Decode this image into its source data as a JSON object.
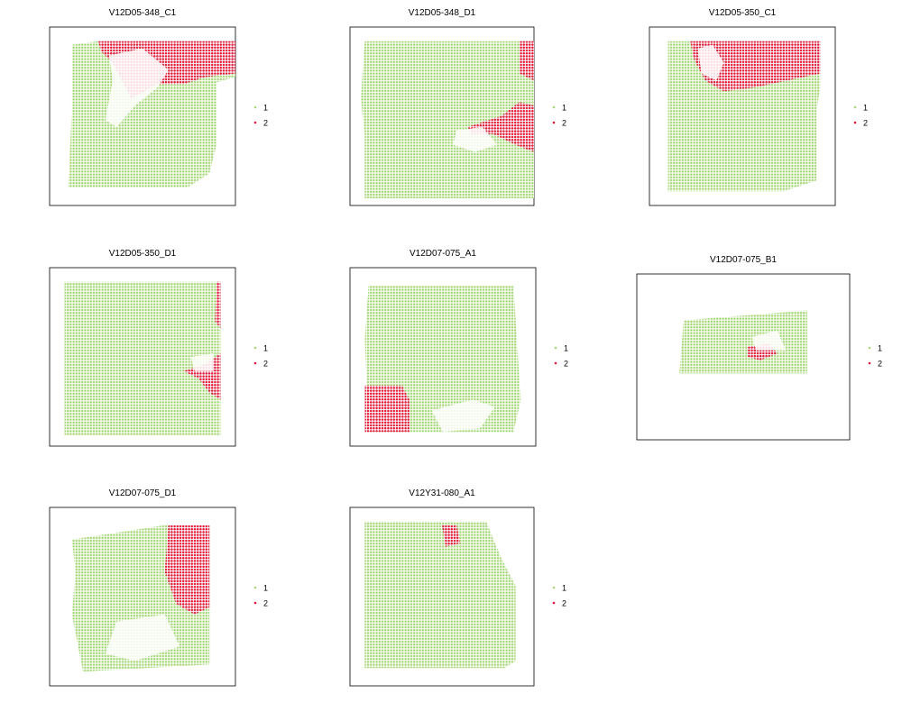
{
  "chart_data": {
    "type": "scatter",
    "description_colors": {
      "cluster_1": "#a8d87a",
      "cluster_2": "#dc1c3a"
    },
    "legend": {
      "placement": "right",
      "entries": [
        {
          "label": "1",
          "color": "#a8d87a"
        },
        {
          "label": "2",
          "color": "#dc1c3a"
        }
      ]
    },
    "panels": [
      {
        "title": "V12D05-348_C1",
        "tissue": [
          [
            0.12,
            0.1
          ],
          [
            0.26,
            0.08
          ],
          [
            1.0,
            0.08
          ],
          [
            1.0,
            0.28
          ],
          [
            0.9,
            0.31
          ],
          [
            0.9,
            0.65
          ],
          [
            0.86,
            0.82
          ],
          [
            0.74,
            0.9
          ],
          [
            0.1,
            0.9
          ],
          [
            0.12,
            0.46
          ],
          [
            0.12,
            0.25
          ]
        ],
        "clusters": [
          {
            "cluster": "2",
            "shape": [
              [
                0.26,
                0.08
              ],
              [
                1.0,
                0.08
              ],
              [
                1.0,
                0.26
              ],
              [
                0.84,
                0.28
              ],
              [
                0.72,
                0.32
              ],
              [
                0.58,
                0.32
              ],
              [
                0.44,
                0.4
              ],
              [
                0.34,
                0.2
              ],
              [
                0.28,
                0.14
              ]
            ]
          }
        ],
        "holes": [
          [
            [
              0.32,
              0.16
            ],
            [
              0.5,
              0.12
            ],
            [
              0.64,
              0.24
            ],
            [
              0.58,
              0.34
            ],
            [
              0.46,
              0.44
            ],
            [
              0.36,
              0.56
            ],
            [
              0.3,
              0.52
            ],
            [
              0.34,
              0.3
            ]
          ]
        ]
      },
      {
        "title": "V12D05-348_D1",
        "tissue": [
          [
            0.08,
            0.08
          ],
          [
            1.0,
            0.08
          ],
          [
            1.0,
            0.96
          ],
          [
            0.08,
            0.96
          ],
          [
            0.08,
            0.6
          ],
          [
            0.06,
            0.4
          ]
        ],
        "clusters": [
          {
            "cluster": "2",
            "shape": [
              [
                0.92,
                0.08
              ],
              [
                1.0,
                0.08
              ],
              [
                1.0,
                0.3
              ],
              [
                0.92,
                0.26
              ]
            ]
          },
          {
            "cluster": "2",
            "shape": [
              [
                0.64,
                0.56
              ],
              [
                0.82,
                0.5
              ],
              [
                0.92,
                0.42
              ],
              [
                1.0,
                0.44
              ],
              [
                1.0,
                0.7
              ],
              [
                0.9,
                0.66
              ],
              [
                0.78,
                0.6
              ],
              [
                0.66,
                0.6
              ]
            ]
          }
        ],
        "holes": [
          [
            [
              0.58,
              0.58
            ],
            [
              0.72,
              0.56
            ],
            [
              0.8,
              0.66
            ],
            [
              0.68,
              0.7
            ],
            [
              0.56,
              0.66
            ]
          ]
        ]
      },
      {
        "title": "V12D05-350_C1",
        "tissue": [
          [
            0.1,
            0.08
          ],
          [
            0.92,
            0.08
          ],
          [
            0.92,
            0.34
          ],
          [
            0.9,
            0.46
          ],
          [
            0.9,
            0.86
          ],
          [
            0.72,
            0.92
          ],
          [
            0.1,
            0.92
          ],
          [
            0.1,
            0.3
          ]
        ],
        "clusters": [
          {
            "cluster": "2",
            "shape": [
              [
                0.22,
                0.08
              ],
              [
                0.92,
                0.08
              ],
              [
                0.92,
                0.26
              ],
              [
                0.74,
                0.3
              ],
              [
                0.56,
                0.34
              ],
              [
                0.4,
                0.36
              ],
              [
                0.3,
                0.3
              ],
              [
                0.24,
                0.18
              ]
            ]
          }
        ],
        "holes": [
          [
            [
              0.26,
              0.12
            ],
            [
              0.34,
              0.1
            ],
            [
              0.4,
              0.2
            ],
            [
              0.36,
              0.3
            ],
            [
              0.28,
              0.26
            ]
          ]
        ]
      },
      {
        "title": "V12D05-350_D1",
        "tissue": [
          [
            0.08,
            0.08
          ],
          [
            0.92,
            0.08
          ],
          [
            0.92,
            0.94
          ],
          [
            0.08,
            0.94
          ]
        ],
        "clusters": [
          {
            "cluster": "2",
            "shape": [
              [
                0.9,
                0.08
              ],
              [
                0.92,
                0.08
              ],
              [
                0.92,
                0.34
              ],
              [
                0.89,
                0.3
              ]
            ]
          },
          {
            "cluster": "2",
            "shape": [
              [
                0.72,
                0.58
              ],
              [
                0.84,
                0.54
              ],
              [
                0.92,
                0.48
              ],
              [
                0.92,
                0.74
              ],
              [
                0.86,
                0.7
              ],
              [
                0.8,
                0.62
              ]
            ]
          }
        ],
        "holes": [
          [
            [
              0.76,
              0.5
            ],
            [
              0.88,
              0.48
            ],
            [
              0.88,
              0.58
            ],
            [
              0.78,
              0.58
            ]
          ]
        ]
      },
      {
        "title": "V12D07-075_A1",
        "tissue": [
          [
            0.1,
            0.1
          ],
          [
            0.88,
            0.1
          ],
          [
            0.9,
            0.44
          ],
          [
            0.92,
            0.74
          ],
          [
            0.88,
            0.92
          ],
          [
            0.1,
            0.92
          ],
          [
            0.08,
            0.4
          ]
        ],
        "clusters": [
          {
            "cluster": "2",
            "shape": [
              [
                0.08,
                0.66
              ],
              [
                0.28,
                0.66
              ],
              [
                0.32,
                0.74
              ],
              [
                0.32,
                0.92
              ],
              [
                0.08,
                0.92
              ]
            ]
          }
        ],
        "holes": [
          [
            [
              0.44,
              0.8
            ],
            [
              0.66,
              0.74
            ],
            [
              0.78,
              0.78
            ],
            [
              0.7,
              0.9
            ],
            [
              0.5,
              0.92
            ]
          ]
        ]
      },
      {
        "title": "V12D07-075_B1",
        "tissue": [
          [
            0.22,
            0.28
          ],
          [
            0.8,
            0.22
          ],
          [
            0.8,
            0.6
          ],
          [
            0.2,
            0.6
          ]
        ],
        "clusters": [
          {
            "cluster": "2",
            "shape": [
              [
                0.52,
                0.44
              ],
              [
                0.62,
                0.42
              ],
              [
                0.66,
                0.48
              ],
              [
                0.58,
                0.52
              ],
              [
                0.52,
                0.5
              ]
            ]
          }
        ],
        "holes": [
          [
            [
              0.54,
              0.38
            ],
            [
              0.66,
              0.34
            ],
            [
              0.7,
              0.46
            ],
            [
              0.56,
              0.46
            ]
          ]
        ]
      },
      {
        "title": "V12D07-075_D1",
        "tissue": [
          [
            0.12,
            0.18
          ],
          [
            0.62,
            0.1
          ],
          [
            0.86,
            0.1
          ],
          [
            0.86,
            0.88
          ],
          [
            0.18,
            0.92
          ],
          [
            0.12,
            0.6
          ],
          [
            0.14,
            0.36
          ]
        ],
        "clusters": [
          {
            "cluster": "2",
            "shape": [
              [
                0.64,
                0.1
              ],
              [
                0.86,
                0.1
              ],
              [
                0.86,
                0.56
              ],
              [
                0.78,
                0.6
              ],
              [
                0.68,
                0.54
              ],
              [
                0.62,
                0.36
              ]
            ]
          }
        ],
        "holes": [
          [
            [
              0.36,
              0.64
            ],
            [
              0.62,
              0.6
            ],
            [
              0.7,
              0.78
            ],
            [
              0.46,
              0.86
            ],
            [
              0.3,
              0.82
            ]
          ]
        ]
      },
      {
        "title": "V12Y31-080_A1",
        "tissue": [
          [
            0.08,
            0.08
          ],
          [
            0.74,
            0.08
          ],
          [
            0.82,
            0.28
          ],
          [
            0.9,
            0.44
          ],
          [
            0.9,
            0.86
          ],
          [
            0.84,
            0.9
          ],
          [
            0.08,
            0.9
          ]
        ],
        "clusters": [
          {
            "cluster": "2",
            "shape": [
              [
                0.5,
                0.1
              ],
              [
                0.58,
                0.1
              ],
              [
                0.6,
                0.2
              ],
              [
                0.52,
                0.22
              ]
            ]
          }
        ],
        "holes": []
      }
    ]
  }
}
